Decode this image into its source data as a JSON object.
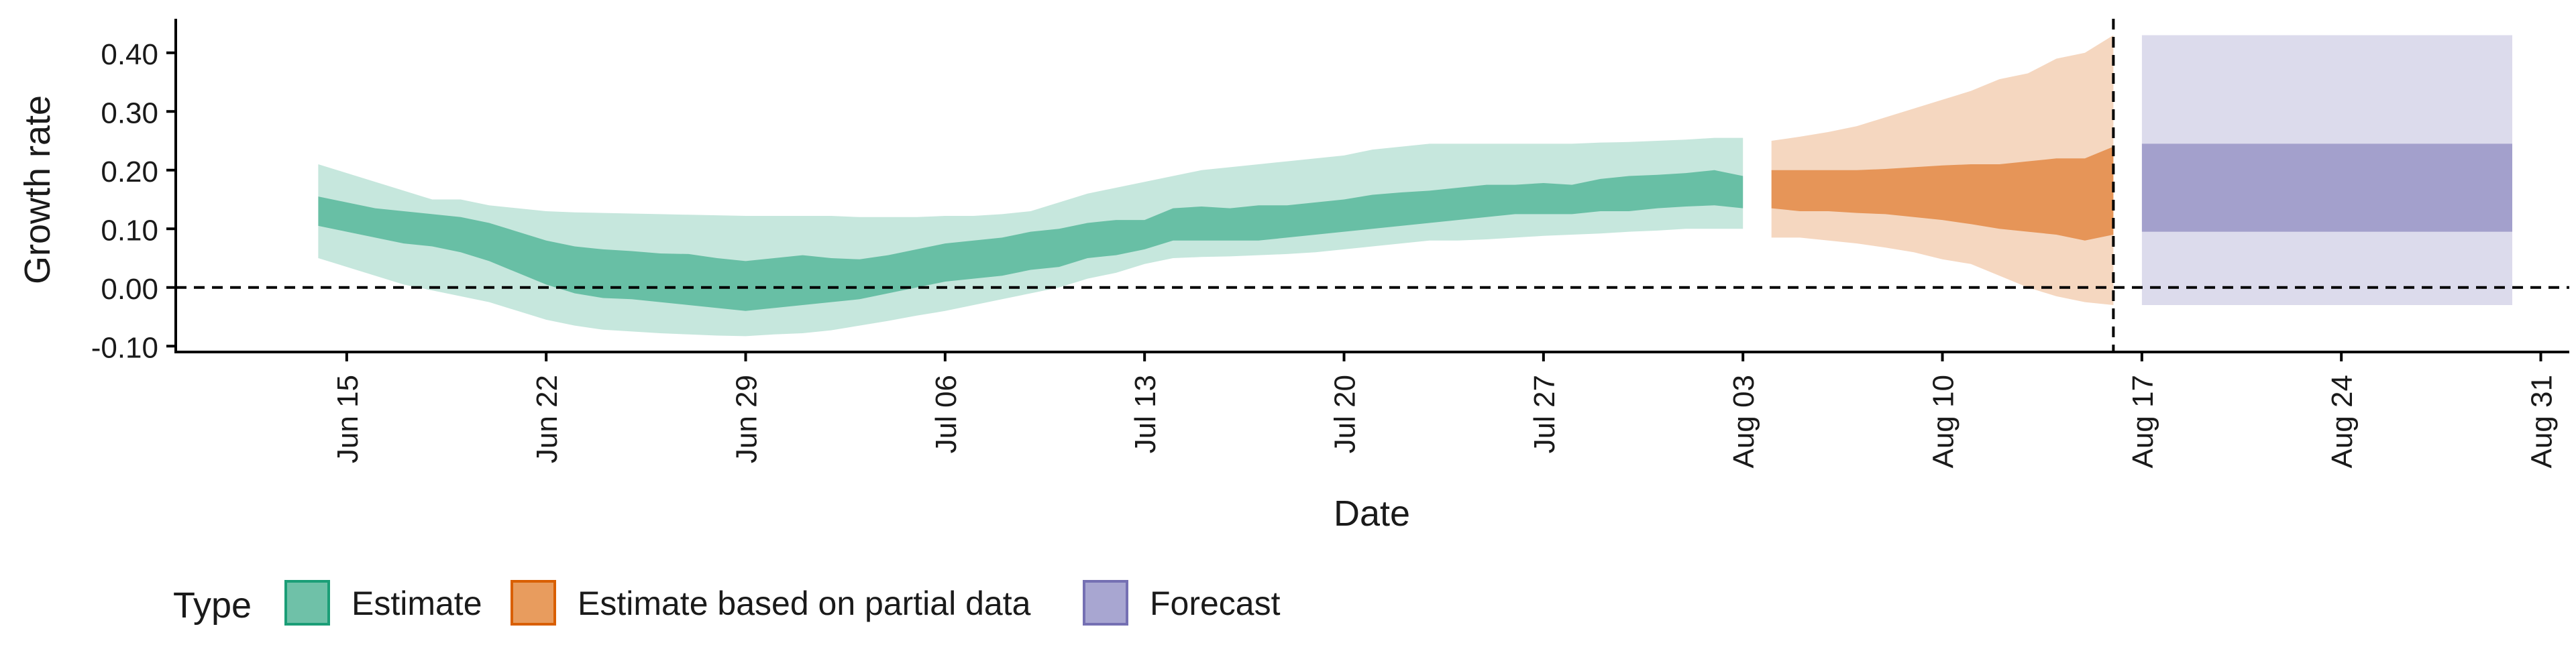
{
  "chart_data": {
    "type": "area",
    "title": "",
    "xlabel": "Date",
    "ylabel": "Growth rate",
    "xlim": [
      "2020-06-09",
      "2020-09-01"
    ],
    "ylim": [
      -0.11,
      0.45
    ],
    "x_ticks": [
      {
        "date": "2020-06-15",
        "label": "Jun 15"
      },
      {
        "date": "2020-06-22",
        "label": "Jun 22"
      },
      {
        "date": "2020-06-29",
        "label": "Jun 29"
      },
      {
        "date": "2020-07-06",
        "label": "Jul 06"
      },
      {
        "date": "2020-07-13",
        "label": "Jul 13"
      },
      {
        "date": "2020-07-20",
        "label": "Jul 20"
      },
      {
        "date": "2020-07-27",
        "label": "Jul 27"
      },
      {
        "date": "2020-08-03",
        "label": "Aug 03"
      },
      {
        "date": "2020-08-10",
        "label": "Aug 10"
      },
      {
        "date": "2020-08-17",
        "label": "Aug 17"
      },
      {
        "date": "2020-08-24",
        "label": "Aug 24"
      },
      {
        "date": "2020-08-31",
        "label": "Aug 31"
      }
    ],
    "y_ticks": [
      {
        "value": 0.4,
        "label": "0.40"
      },
      {
        "value": 0.3,
        "label": "0.30"
      },
      {
        "value": 0.2,
        "label": "0.20"
      },
      {
        "value": 0.1,
        "label": "0.10"
      },
      {
        "value": 0.0,
        "label": "0.00"
      },
      {
        "value": -0.1,
        "label": "-0.10"
      }
    ],
    "reference_lines": {
      "horizontal_y": 0.0,
      "vertical_date": "2020-08-16",
      "style": "dashed"
    },
    "grid": false,
    "legend": {
      "position": "bottom",
      "title": "Type",
      "entries": [
        {
          "label": "Estimate",
          "fill": "#6fc1a8",
          "stroke": "#1b9e77"
        },
        {
          "label": "Estimate based on partial data",
          "fill": "#e89c5e",
          "stroke": "#d95f02"
        },
        {
          "label": "Forecast",
          "fill": "#a8a6d1",
          "stroke": "#7570b3"
        }
      ]
    },
    "series": [
      {
        "type": "Estimate",
        "color": "#1b9e77",
        "points": [
          {
            "date": "2020-06-14",
            "lower_90": 0.05,
            "lower_50": 0.105,
            "upper_50": 0.155,
            "upper_90": 0.21
          },
          {
            "date": "2020-06-15",
            "lower_90": 0.035,
            "lower_50": 0.095,
            "upper_50": 0.145,
            "upper_90": 0.195
          },
          {
            "date": "2020-06-16",
            "lower_90": 0.02,
            "lower_50": 0.085,
            "upper_50": 0.135,
            "upper_90": 0.18
          },
          {
            "date": "2020-06-17",
            "lower_90": 0.005,
            "lower_50": 0.075,
            "upper_50": 0.13,
            "upper_90": 0.165
          },
          {
            "date": "2020-06-18",
            "lower_90": -0.005,
            "lower_50": 0.07,
            "upper_50": 0.125,
            "upper_90": 0.15
          },
          {
            "date": "2020-06-19",
            "lower_90": -0.015,
            "lower_50": 0.06,
            "upper_50": 0.12,
            "upper_90": 0.15
          },
          {
            "date": "2020-06-20",
            "lower_90": -0.025,
            "lower_50": 0.045,
            "upper_50": 0.11,
            "upper_90": 0.14
          },
          {
            "date": "2020-06-21",
            "lower_90": -0.04,
            "lower_50": 0.025,
            "upper_50": 0.095,
            "upper_90": 0.135
          },
          {
            "date": "2020-06-22",
            "lower_90": -0.055,
            "lower_50": 0.005,
            "upper_50": 0.08,
            "upper_90": 0.13
          },
          {
            "date": "2020-06-23",
            "lower_90": -0.065,
            "lower_50": -0.01,
            "upper_50": 0.07,
            "upper_90": 0.128
          },
          {
            "date": "2020-06-24",
            "lower_90": -0.072,
            "lower_50": -0.018,
            "upper_50": 0.065,
            "upper_90": 0.127
          },
          {
            "date": "2020-06-25",
            "lower_90": -0.075,
            "lower_50": -0.02,
            "upper_50": 0.062,
            "upper_90": 0.126
          },
          {
            "date": "2020-06-26",
            "lower_90": -0.078,
            "lower_50": -0.025,
            "upper_50": 0.058,
            "upper_90": 0.125
          },
          {
            "date": "2020-06-27",
            "lower_90": -0.08,
            "lower_50": -0.03,
            "upper_50": 0.057,
            "upper_90": 0.124
          },
          {
            "date": "2020-06-28",
            "lower_90": -0.082,
            "lower_50": -0.035,
            "upper_50": 0.05,
            "upper_90": 0.123
          },
          {
            "date": "2020-06-29",
            "lower_90": -0.083,
            "lower_50": -0.04,
            "upper_50": 0.045,
            "upper_90": 0.122
          },
          {
            "date": "2020-06-30",
            "lower_90": -0.08,
            "lower_50": -0.035,
            "upper_50": 0.05,
            "upper_90": 0.122
          },
          {
            "date": "2020-07-01",
            "lower_90": -0.078,
            "lower_50": -0.03,
            "upper_50": 0.055,
            "upper_90": 0.122
          },
          {
            "date": "2020-07-02",
            "lower_90": -0.073,
            "lower_50": -0.025,
            "upper_50": 0.05,
            "upper_90": 0.122
          },
          {
            "date": "2020-07-03",
            "lower_90": -0.065,
            "lower_50": -0.02,
            "upper_50": 0.048,
            "upper_90": 0.12
          },
          {
            "date": "2020-07-04",
            "lower_90": -0.057,
            "lower_50": -0.01,
            "upper_50": 0.055,
            "upper_90": 0.12
          },
          {
            "date": "2020-07-05",
            "lower_90": -0.048,
            "lower_50": 0.0,
            "upper_50": 0.065,
            "upper_90": 0.12
          },
          {
            "date": "2020-07-06",
            "lower_90": -0.04,
            "lower_50": 0.01,
            "upper_50": 0.075,
            "upper_90": 0.122
          },
          {
            "date": "2020-07-07",
            "lower_90": -0.03,
            "lower_50": 0.015,
            "upper_50": 0.08,
            "upper_90": 0.122
          },
          {
            "date": "2020-07-08",
            "lower_90": -0.02,
            "lower_50": 0.02,
            "upper_50": 0.085,
            "upper_90": 0.125
          },
          {
            "date": "2020-07-09",
            "lower_90": -0.01,
            "lower_50": 0.03,
            "upper_50": 0.095,
            "upper_90": 0.13
          },
          {
            "date": "2020-07-10",
            "lower_90": 0.0,
            "lower_50": 0.035,
            "upper_50": 0.1,
            "upper_90": 0.145
          },
          {
            "date": "2020-07-11",
            "lower_90": 0.015,
            "lower_50": 0.05,
            "upper_50": 0.11,
            "upper_90": 0.16
          },
          {
            "date": "2020-07-12",
            "lower_90": 0.025,
            "lower_50": 0.055,
            "upper_50": 0.115,
            "upper_90": 0.17
          },
          {
            "date": "2020-07-13",
            "lower_90": 0.04,
            "lower_50": 0.065,
            "upper_50": 0.115,
            "upper_90": 0.18
          },
          {
            "date": "2020-07-14",
            "lower_90": 0.05,
            "lower_50": 0.08,
            "upper_50": 0.135,
            "upper_90": 0.19
          },
          {
            "date": "2020-07-15",
            "lower_90": 0.052,
            "lower_50": 0.08,
            "upper_50": 0.138,
            "upper_90": 0.2
          },
          {
            "date": "2020-07-16",
            "lower_90": 0.053,
            "lower_50": 0.08,
            "upper_50": 0.135,
            "upper_90": 0.205
          },
          {
            "date": "2020-07-17",
            "lower_90": 0.055,
            "lower_50": 0.08,
            "upper_50": 0.14,
            "upper_90": 0.21
          },
          {
            "date": "2020-07-18",
            "lower_90": 0.057,
            "lower_50": 0.085,
            "upper_50": 0.14,
            "upper_90": 0.215
          },
          {
            "date": "2020-07-19",
            "lower_90": 0.06,
            "lower_50": 0.09,
            "upper_50": 0.145,
            "upper_90": 0.22
          },
          {
            "date": "2020-07-20",
            "lower_90": 0.065,
            "lower_50": 0.095,
            "upper_50": 0.15,
            "upper_90": 0.225
          },
          {
            "date": "2020-07-21",
            "lower_90": 0.07,
            "lower_50": 0.1,
            "upper_50": 0.158,
            "upper_90": 0.235
          },
          {
            "date": "2020-07-22",
            "lower_90": 0.075,
            "lower_50": 0.105,
            "upper_50": 0.162,
            "upper_90": 0.24
          },
          {
            "date": "2020-07-23",
            "lower_90": 0.08,
            "lower_50": 0.11,
            "upper_50": 0.165,
            "upper_90": 0.245
          },
          {
            "date": "2020-07-24",
            "lower_90": 0.08,
            "lower_50": 0.115,
            "upper_50": 0.17,
            "upper_90": 0.245
          },
          {
            "date": "2020-07-25",
            "lower_90": 0.082,
            "lower_50": 0.12,
            "upper_50": 0.175,
            "upper_90": 0.245
          },
          {
            "date": "2020-07-26",
            "lower_90": 0.085,
            "lower_50": 0.125,
            "upper_50": 0.175,
            "upper_90": 0.245
          },
          {
            "date": "2020-07-27",
            "lower_90": 0.088,
            "lower_50": 0.125,
            "upper_50": 0.178,
            "upper_90": 0.245
          },
          {
            "date": "2020-07-28",
            "lower_90": 0.09,
            "lower_50": 0.125,
            "upper_50": 0.175,
            "upper_90": 0.245
          },
          {
            "date": "2020-07-29",
            "lower_90": 0.092,
            "lower_50": 0.13,
            "upper_50": 0.185,
            "upper_90": 0.247
          },
          {
            "date": "2020-07-30",
            "lower_90": 0.095,
            "lower_50": 0.13,
            "upper_50": 0.19,
            "upper_90": 0.248
          },
          {
            "date": "2020-07-31",
            "lower_90": 0.097,
            "lower_50": 0.135,
            "upper_50": 0.192,
            "upper_90": 0.25
          },
          {
            "date": "2020-08-01",
            "lower_90": 0.1,
            "lower_50": 0.138,
            "upper_50": 0.195,
            "upper_90": 0.252
          },
          {
            "date": "2020-08-02",
            "lower_90": 0.1,
            "lower_50": 0.14,
            "upper_50": 0.2,
            "upper_90": 0.255
          },
          {
            "date": "2020-08-03",
            "lower_90": 0.1,
            "lower_50": 0.135,
            "upper_50": 0.19,
            "upper_90": 0.255
          }
        ]
      },
      {
        "type": "Estimate based on partial data",
        "color": "#d95f02",
        "points": [
          {
            "date": "2020-08-04",
            "lower_90": 0.085,
            "lower_50": 0.135,
            "upper_50": 0.2,
            "upper_90": 0.25
          },
          {
            "date": "2020-08-05",
            "lower_90": 0.085,
            "lower_50": 0.13,
            "upper_50": 0.2,
            "upper_90": 0.257
          },
          {
            "date": "2020-08-06",
            "lower_90": 0.08,
            "lower_50": 0.13,
            "upper_50": 0.2,
            "upper_90": 0.265
          },
          {
            "date": "2020-08-07",
            "lower_90": 0.075,
            "lower_50": 0.127,
            "upper_50": 0.2,
            "upper_90": 0.275
          },
          {
            "date": "2020-08-08",
            "lower_90": 0.068,
            "lower_50": 0.125,
            "upper_50": 0.202,
            "upper_90": 0.29
          },
          {
            "date": "2020-08-09",
            "lower_90": 0.06,
            "lower_50": 0.12,
            "upper_50": 0.205,
            "upper_90": 0.305
          },
          {
            "date": "2020-08-10",
            "lower_90": 0.048,
            "lower_50": 0.115,
            "upper_50": 0.208,
            "upper_90": 0.32
          },
          {
            "date": "2020-08-11",
            "lower_90": 0.04,
            "lower_50": 0.108,
            "upper_50": 0.21,
            "upper_90": 0.335
          },
          {
            "date": "2020-08-12",
            "lower_90": 0.02,
            "lower_50": 0.1,
            "upper_50": 0.21,
            "upper_90": 0.355
          },
          {
            "date": "2020-08-13",
            "lower_90": 0.0,
            "lower_50": 0.095,
            "upper_50": 0.215,
            "upper_90": 0.365
          },
          {
            "date": "2020-08-14",
            "lower_90": -0.015,
            "lower_50": 0.09,
            "upper_50": 0.22,
            "upper_90": 0.39
          },
          {
            "date": "2020-08-15",
            "lower_90": -0.025,
            "lower_50": 0.08,
            "upper_50": 0.22,
            "upper_90": 0.4
          },
          {
            "date": "2020-08-16",
            "lower_90": -0.03,
            "lower_50": 0.09,
            "upper_50": 0.24,
            "upper_90": 0.43
          }
        ]
      },
      {
        "type": "Forecast",
        "color": "#7570b3",
        "points": [
          {
            "date": "2020-08-17",
            "lower_90": -0.03,
            "lower_50": 0.095,
            "upper_50": 0.245,
            "upper_90": 0.43
          },
          {
            "date": "2020-08-30",
            "lower_90": -0.03,
            "lower_50": 0.095,
            "upper_50": 0.245,
            "upper_90": 0.43
          }
        ]
      }
    ]
  }
}
